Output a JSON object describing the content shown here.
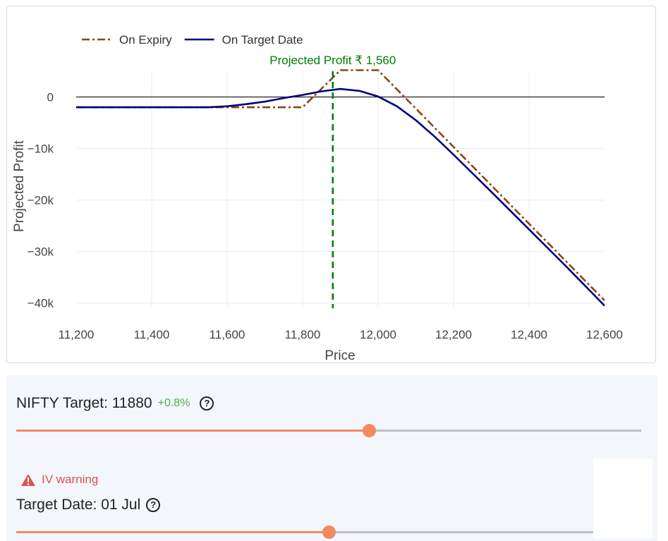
{
  "chart_data": {
    "type": "line",
    "xlabel": "Price",
    "ylabel": "Projected Profit",
    "xlim": [
      11200,
      12600
    ],
    "ylim": [
      -41000,
      5000
    ],
    "x_ticks": [
      11200,
      11400,
      11600,
      11800,
      12000,
      12200,
      12400,
      12600
    ],
    "x_tick_labels": [
      "11,200",
      "11,400",
      "11,600",
      "11,800",
      "12,000",
      "12,200",
      "12,400",
      "12,600"
    ],
    "y_ticks": [
      0,
      -10000,
      -20000,
      -30000,
      -40000
    ],
    "y_tick_labels": [
      "0",
      "−10k",
      "−20k",
      "−30k",
      "−40k"
    ],
    "grid": true,
    "legend_position": "top-left",
    "series": [
      {
        "name": "On Expiry",
        "color": "#8b4513",
        "dash": "dashdot",
        "points": [
          [
            11200,
            -2000
          ],
          [
            11800,
            -2000
          ],
          [
            11900,
            5200
          ],
          [
            12000,
            5200
          ],
          [
            12600,
            -39500
          ]
        ]
      },
      {
        "name": "On Target Date",
        "color": "#000080",
        "dash": "solid",
        "points": [
          [
            11200,
            -2000
          ],
          [
            11400,
            -2000
          ],
          [
            11550,
            -2000
          ],
          [
            11600,
            -1800
          ],
          [
            11650,
            -1400
          ],
          [
            11700,
            -900
          ],
          [
            11750,
            -200
          ],
          [
            11800,
            400
          ],
          [
            11850,
            1100
          ],
          [
            11900,
            1560
          ],
          [
            11950,
            1200
          ],
          [
            12000,
            100
          ],
          [
            12050,
            -1800
          ],
          [
            12100,
            -4500
          ],
          [
            12150,
            -7700
          ],
          [
            12200,
            -11200
          ],
          [
            12300,
            -18400
          ],
          [
            12400,
            -25700
          ],
          [
            12500,
            -33000
          ],
          [
            12600,
            -40500
          ]
        ]
      }
    ],
    "annotations": [
      {
        "text": "Projected Profit ₹ 1,560",
        "x": 11880,
        "color": "#008000",
        "style": "vertical-dashed-line"
      }
    ]
  },
  "controls": {
    "target_label": "NIFTY Target: 11880",
    "target_change": "+0.8%",
    "target_slider_fraction": 0.564,
    "iv_warning": "IV warning",
    "date_label": "Target Date: 01 Jul",
    "date_slider_fraction": 0.5
  },
  "colors": {
    "accent": "#f4895f",
    "warning": "#d9534f",
    "positive": "#4caf50"
  },
  "icons": {
    "help": "question-circle-icon",
    "warning": "warning-triangle-icon"
  }
}
